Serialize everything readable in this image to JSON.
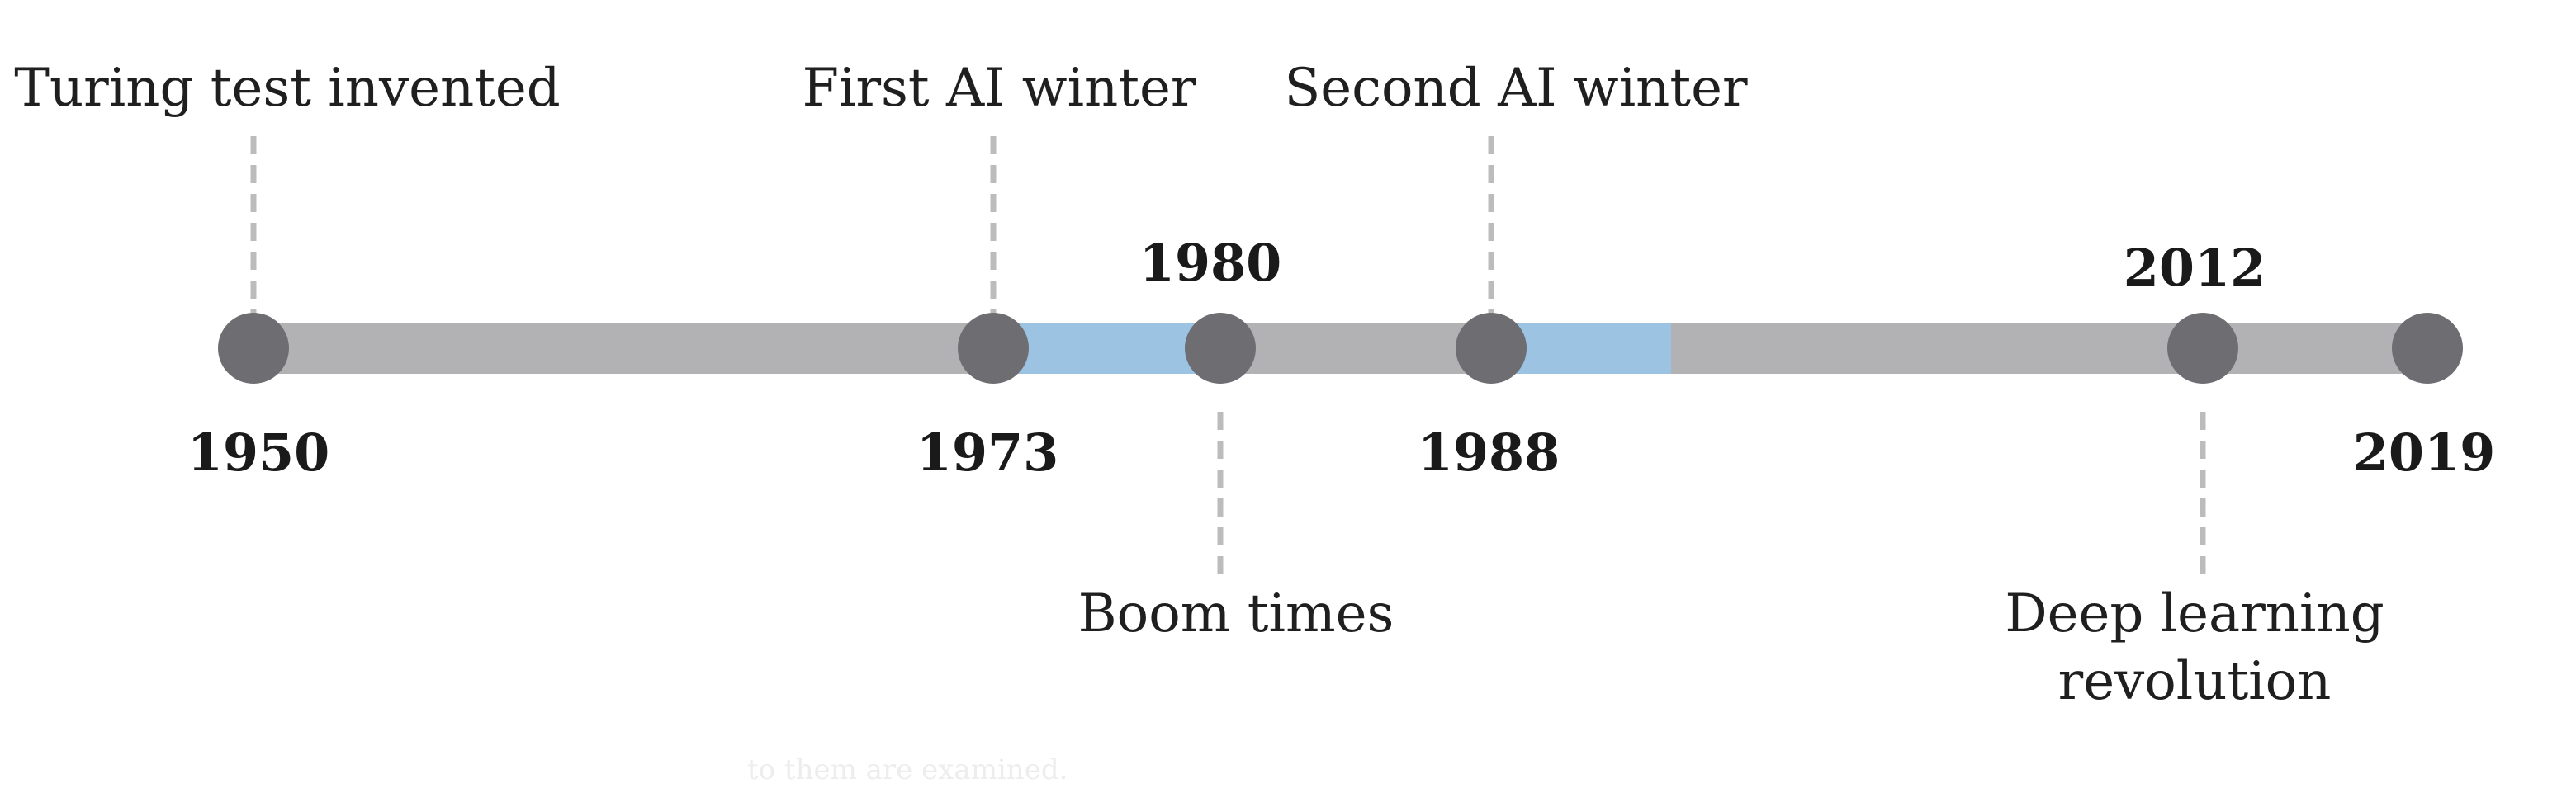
{
  "timeline": {
    "start_year": 1950,
    "end_year": 2019,
    "colors": {
      "track": "#b2b2b4",
      "winter": "#9dc3e2",
      "node": "#6e6e72",
      "connector": "#bcbcbc",
      "text": "#1f1f1f"
    },
    "winters": [
      {
        "start": 1973,
        "end": 1980
      },
      {
        "start": 1988,
        "end": 1994
      }
    ],
    "events": [
      {
        "year": 1950,
        "year_label": "1950",
        "label": [
          "Turing test invented"
        ]
      },
      {
        "year": 1973,
        "year_label": "1973",
        "label": [
          "First AI winter"
        ]
      },
      {
        "year": 1980,
        "year_label": "1980",
        "label": [
          "Boom times"
        ]
      },
      {
        "year": 1988,
        "year_label": "1988",
        "label": [
          "Second AI winter"
        ]
      },
      {
        "year": 2012,
        "year_label": "2012",
        "label": [
          "Deep learning",
          "revolution"
        ]
      },
      {
        "year": 2019,
        "year_label": "2019",
        "label": []
      }
    ]
  },
  "footer_fragment": "to them are examined."
}
